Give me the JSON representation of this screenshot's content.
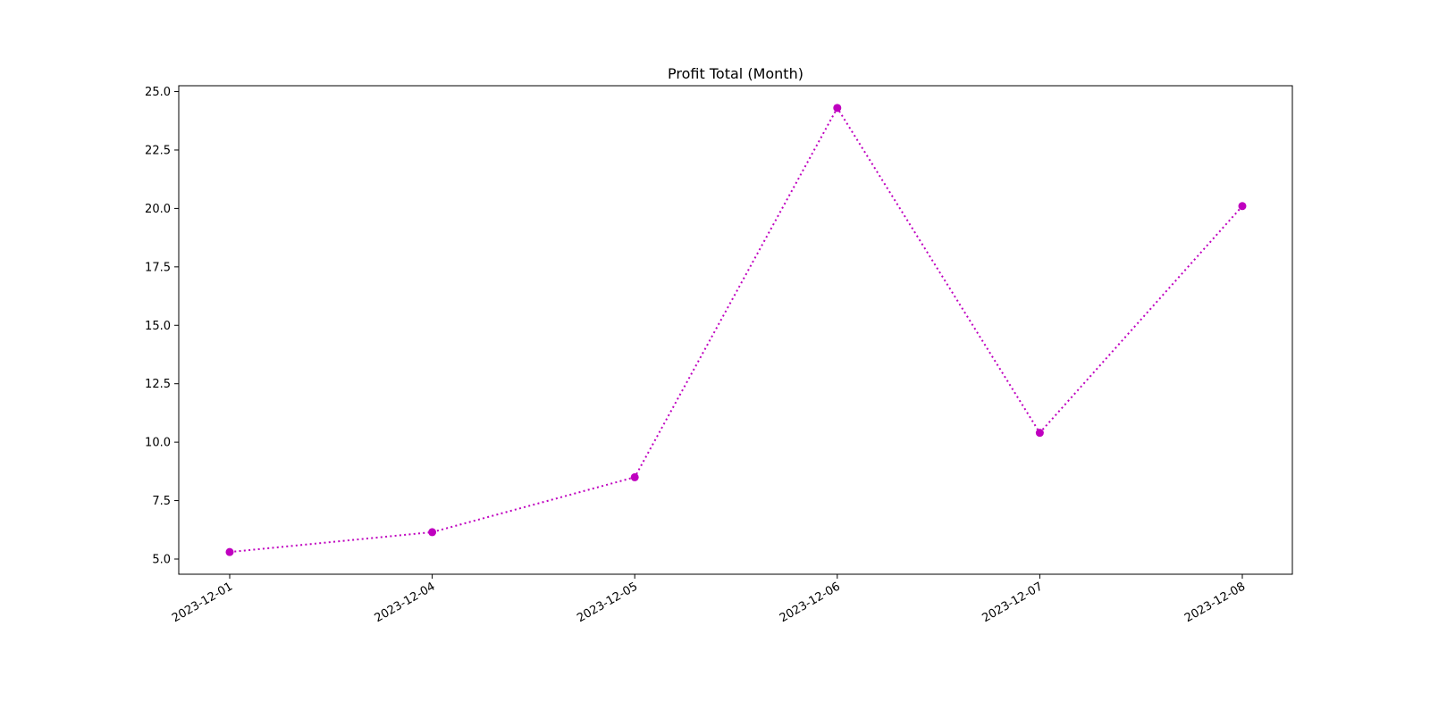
{
  "chart_data": {
    "type": "line",
    "title": "Profit Total (Month)",
    "xlabel": "",
    "ylabel": "",
    "categories": [
      "2023-12-01",
      "2023-12-04",
      "2023-12-05",
      "2023-12-06",
      "2023-12-07",
      "2023-12-08"
    ],
    "series": [
      {
        "values": [
          5.3,
          6.15,
          8.5,
          24.3,
          10.4,
          20.1
        ],
        "color": "#bf00bf",
        "line_style": "dotted",
        "marker": "circle"
      }
    ],
    "ylim": [
      4.35,
      25.25
    ],
    "yticks": [
      5.0,
      7.5,
      10.0,
      12.5,
      15.0,
      17.5,
      20.0,
      22.5,
      25.0
    ],
    "ytick_labels": [
      "5.0",
      "7.5",
      "10.0",
      "12.5",
      "15.0",
      "17.5",
      "20.0",
      "22.5",
      "25.0"
    ],
    "grid": false,
    "legend": "none"
  }
}
